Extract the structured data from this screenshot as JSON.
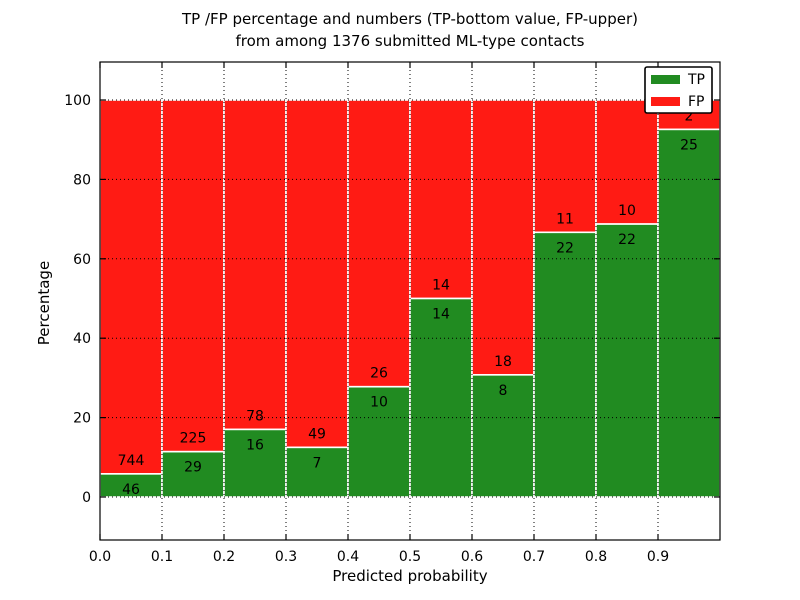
{
  "title": {
    "line1": "TP /FP percentage and numbers (TP-bottom value, FP-upper)",
    "line2": "from among 1376 submitted ML-type contacts"
  },
  "chart_data": {
    "type": "bar",
    "stacked": true,
    "normalized": "each bar scaled to 100%",
    "title": "TP /FP percentage and numbers (TP-bottom value, FP-upper)\nfrom among 1376 submitted ML-type contacts",
    "xlabel": "Predicted probability",
    "ylabel": "Percentage",
    "total_contacts": 1376,
    "bin_width": 0.1,
    "bin_starts": [
      0.0,
      0.1,
      0.2,
      0.3,
      0.4,
      0.5,
      0.6,
      0.7,
      0.8,
      0.9
    ],
    "series": [
      {
        "name": "TP",
        "color": "#218b21",
        "counts": [
          46,
          29,
          16,
          7,
          10,
          14,
          8,
          22,
          22,
          25
        ]
      },
      {
        "name": "FP",
        "color": "#ff1b14",
        "counts": [
          744,
          225,
          78,
          49,
          26,
          14,
          18,
          11,
          10,
          2
        ]
      }
    ],
    "tp_percent_heights": [
      5.82,
      11.42,
      17.02,
      12.5,
      27.78,
      50.0,
      30.77,
      66.67,
      68.75,
      92.59
    ],
    "x_ticks": [
      {
        "value": 0.0,
        "label": "0.0"
      },
      {
        "value": 0.1,
        "label": "0.1"
      },
      {
        "value": 0.2,
        "label": "0.2"
      },
      {
        "value": 0.3,
        "label": "0.3"
      },
      {
        "value": 0.4,
        "label": "0.4"
      },
      {
        "value": 0.5,
        "label": "0.5"
      },
      {
        "value": 0.6,
        "label": "0.6"
      },
      {
        "value": 0.7,
        "label": "0.7"
      },
      {
        "value": 0.8,
        "label": "0.8"
      },
      {
        "value": 0.9,
        "label": "0.9"
      }
    ],
    "y_ticks": [
      {
        "value": 0,
        "label": "0"
      },
      {
        "value": 20,
        "label": "20"
      },
      {
        "value": 40,
        "label": "40"
      },
      {
        "value": 60,
        "label": "60"
      },
      {
        "value": 80,
        "label": "80"
      },
      {
        "value": 100,
        "label": "100"
      }
    ],
    "xlim": [
      0.0,
      1.0
    ],
    "ylim": [
      -10.8,
      109.6
    ],
    "grid": "dotted",
    "legend": {
      "position": "upper right",
      "entries": [
        "TP",
        "FP"
      ]
    },
    "bar_edge_color": "#ffffff"
  }
}
